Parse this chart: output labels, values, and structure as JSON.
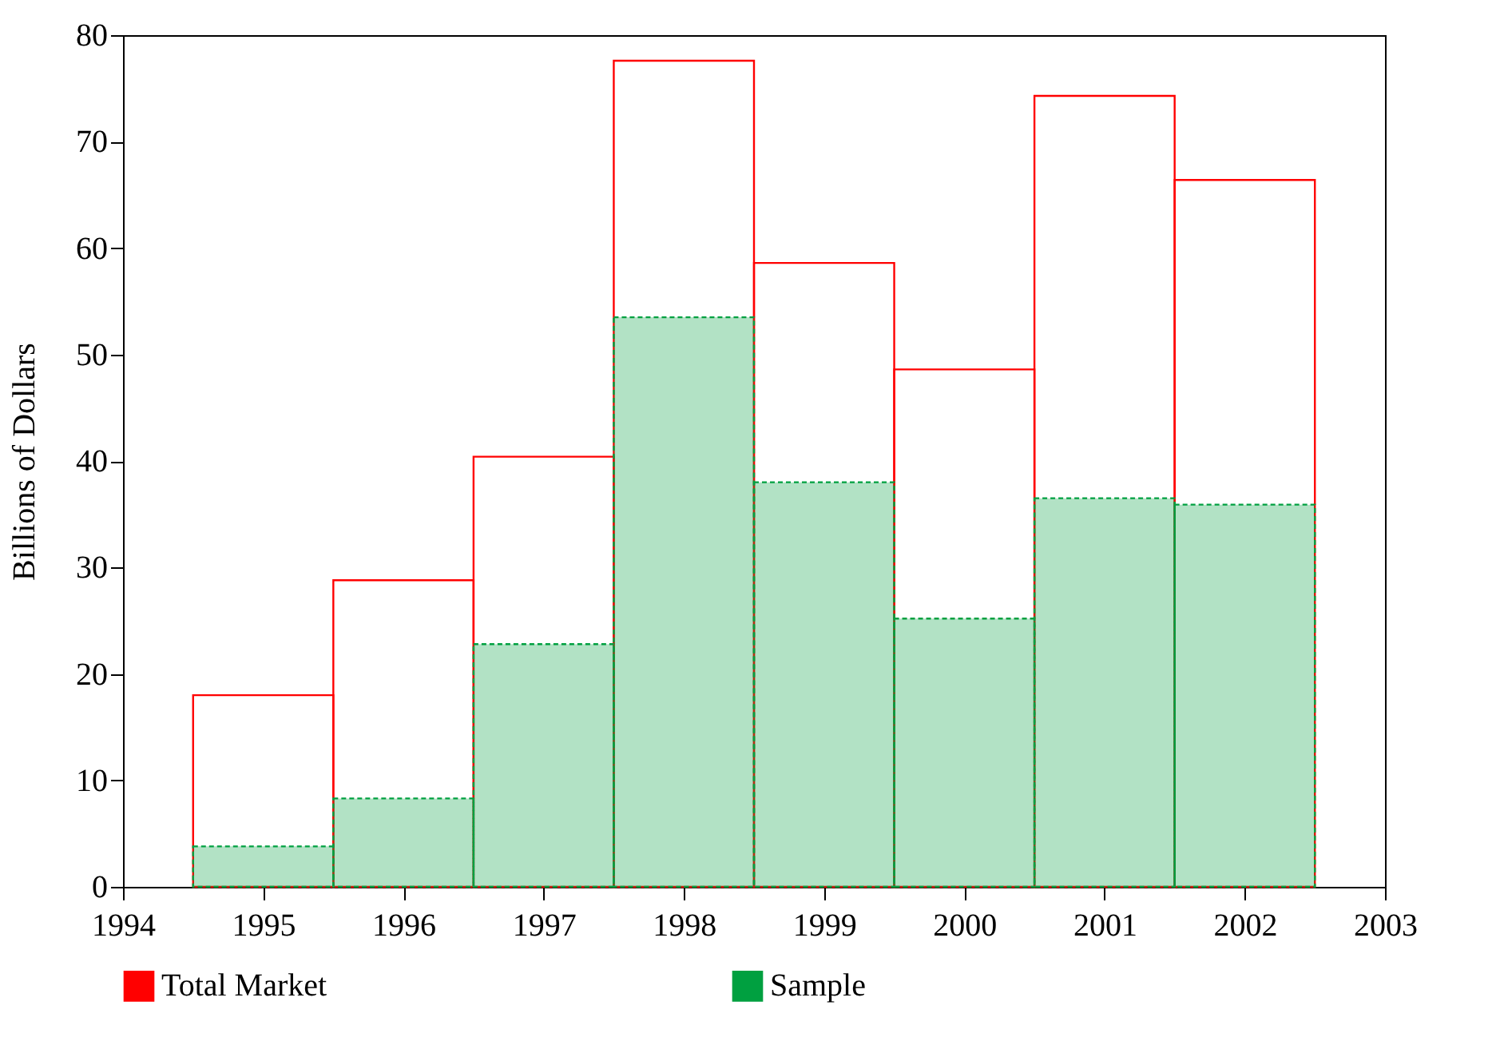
{
  "chart_data": {
    "type": "bar",
    "ylabel": "Billions of Dollars",
    "x": [
      1995,
      1996,
      1997,
      1998,
      1999,
      2000,
      2001,
      2002
    ],
    "series": [
      {
        "name": "Total Market",
        "color": "#ff0000",
        "values": [
          18,
          28.8,
          40.4,
          77.6,
          58.6,
          48.6,
          74.3,
          66.4
        ]
      },
      {
        "name": "Sample",
        "color": "#00a040",
        "values": [
          3.8,
          8.3,
          22.8,
          53.5,
          38,
          25.2,
          36.5,
          35.9
        ]
      }
    ],
    "xlim": [
      1994,
      2003
    ],
    "xticks": [
      1994,
      1995,
      1996,
      1997,
      1998,
      1999,
      2000,
      2001,
      2002,
      2003
    ],
    "ylim": [
      0,
      80
    ],
    "yticks": [
      0,
      10,
      20,
      30,
      40,
      50,
      60,
      70,
      80
    ],
    "legend": "bottom"
  }
}
